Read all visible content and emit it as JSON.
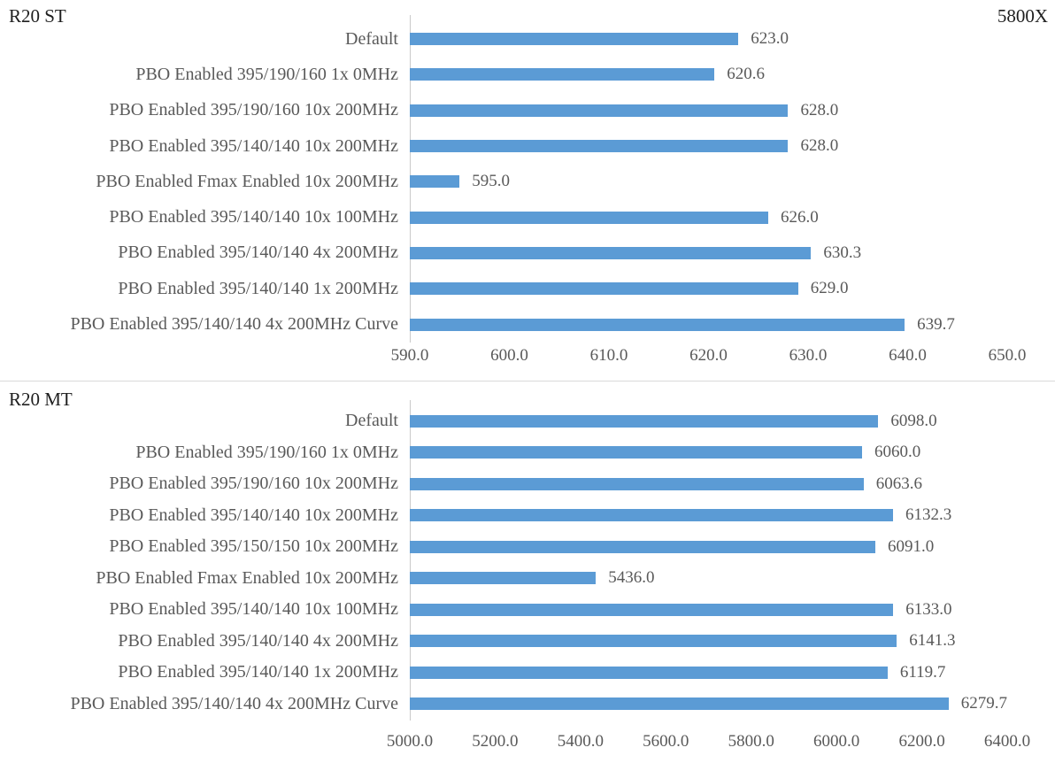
{
  "colors": {
    "bar": "#5b9bd5",
    "axis_line": "#c9c9c9",
    "divider": "#d9d9d9",
    "label_text": "#595959",
    "title_text": "#1f1f1f"
  },
  "chart_data": [
    {
      "type": "bar",
      "orientation": "horizontal",
      "title": "R20 ST",
      "corner_label": "5800X",
      "categories": [
        "Default",
        "PBO Enabled 395/190/160 1x 0MHz",
        "PBO Enabled 395/190/160 10x 200MHz",
        "PBO Enabled 395/140/140 10x 200MHz",
        "PBO Enabled Fmax Enabled 10x 200MHz",
        "PBO Enabled 395/140/140 10x 100MHz",
        "PBO Enabled 395/140/140 4x 200MHz",
        "PBO Enabled 395/140/140 1x 200MHz",
        "PBO Enabled 395/140/140 4x 200MHz Curve"
      ],
      "values": [
        623.0,
        620.6,
        628.0,
        628.0,
        595.0,
        626.0,
        630.3,
        629.0,
        639.7
      ],
      "value_labels": [
        "623.0",
        "620.6",
        "628.0",
        "628.0",
        "595.0",
        "626.0",
        "630.3",
        "629.0",
        "639.7"
      ],
      "xlabel": "",
      "ylabel": "",
      "xlim": [
        590.0,
        650.0
      ],
      "xticks": [
        "590.0",
        "600.0",
        "610.0",
        "620.0",
        "630.0",
        "640.0",
        "650.0"
      ],
      "bar_color": "#5b9bd5",
      "grid": false,
      "legend": "none"
    },
    {
      "type": "bar",
      "orientation": "horizontal",
      "title": "R20 MT",
      "corner_label": "",
      "categories": [
        "Default",
        "PBO Enabled 395/190/160 1x 0MHz",
        "PBO Enabled 395/190/160 10x 200MHz",
        "PBO Enabled 395/140/140 10x 200MHz",
        "PBO Enabled 395/150/150 10x 200MHz",
        "PBO Enabled Fmax Enabled 10x 200MHz",
        "PBO Enabled 395/140/140 10x 100MHz",
        "PBO Enabled 395/140/140 4x 200MHz",
        "PBO Enabled 395/140/140 1x 200MHz",
        "PBO Enabled 395/140/140 4x 200MHz Curve"
      ],
      "values": [
        6098.0,
        6060.0,
        6063.6,
        6132.3,
        6091.0,
        5436.0,
        6133.0,
        6141.3,
        6119.7,
        6279.7
      ],
      "value_labels": [
        "6098.0",
        "6060.0",
        "6063.6",
        "6132.3",
        "6091.0",
        "5436.0",
        "6133.0",
        "6141.3",
        "6119.7",
        "6279.7"
      ],
      "xlabel": "",
      "ylabel": "",
      "xlim": [
        5000.0,
        6400.0
      ],
      "xticks": [
        "5000.0",
        "5200.0",
        "5400.0",
        "5600.0",
        "5800.0",
        "6000.0",
        "6200.0",
        "6400.0"
      ],
      "bar_color": "#5b9bd5",
      "grid": false,
      "legend": "none"
    }
  ]
}
